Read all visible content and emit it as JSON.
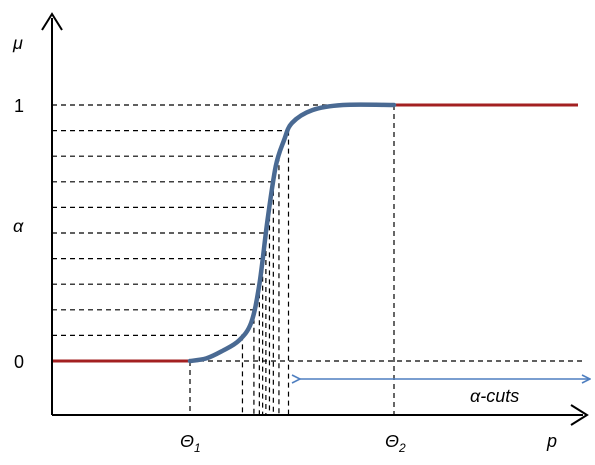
{
  "labels": {
    "y_axis": "μ",
    "x_axis": "p",
    "level_one": "1",
    "level_zero": "0",
    "alpha": "α",
    "theta1_base": "Θ",
    "theta1_sub": "1",
    "theta2_base": "Θ",
    "theta2_sub": "2",
    "alpha_cuts": "α-cuts"
  },
  "colors": {
    "curve": "#4a6a93",
    "flat_segments": "#a32021",
    "arrow": "#4f7fc0",
    "axes": "#000000"
  },
  "membership": {
    "theta1": 0,
    "theta2": 1,
    "alpha_levels": [
      0.1,
      0.2,
      0.3,
      0.4,
      0.5,
      0.6,
      0.7,
      0.8,
      0.9
    ],
    "curve_points": [
      [
        0.0,
        0.0
      ],
      [
        0.08,
        0.01
      ],
      [
        0.16,
        0.04
      ],
      [
        0.24,
        0.08
      ],
      [
        0.3,
        0.15
      ],
      [
        0.34,
        0.3
      ],
      [
        0.38,
        0.55
      ],
      [
        0.42,
        0.76
      ],
      [
        0.46,
        0.86
      ],
      [
        0.5,
        0.93
      ],
      [
        0.6,
        0.98
      ],
      [
        0.75,
        1.0
      ],
      [
        1.0,
        1.0
      ]
    ]
  }
}
